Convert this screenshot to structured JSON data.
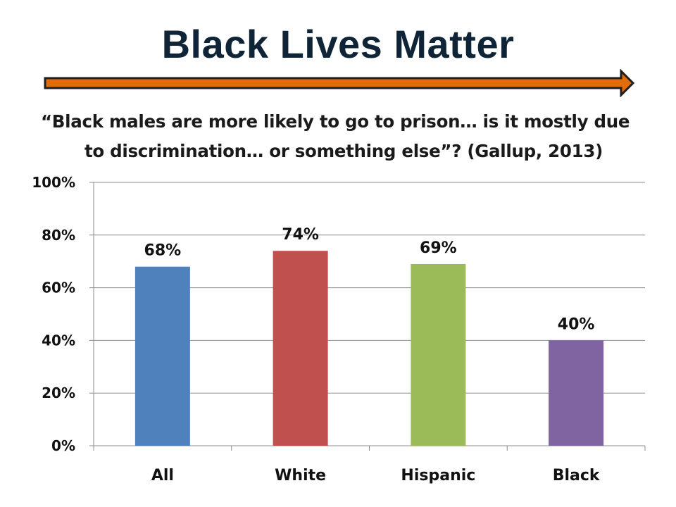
{
  "slide": {
    "title": "Black Lives Matter",
    "subtitle": "“Black males are more likely to go to prison… is it mostly due to discrimination… or something else”? (Gallup, 2013)"
  },
  "colors": {
    "arrow_fill": "#e36c0a",
    "arrow_stroke": "#1f1f1f",
    "title": "#0f2436"
  },
  "chart_data": {
    "type": "bar",
    "title": "",
    "xlabel": "",
    "ylabel": "",
    "categories": [
      "All",
      "White",
      "Hispanic",
      "Black"
    ],
    "values": [
      0.68,
      0.74,
      0.69,
      0.4
    ],
    "data_labels": [
      "68%",
      "74%",
      "69%",
      "40%"
    ],
    "bar_colors": [
      "#4f81bd",
      "#c0504d",
      "#9bbb59",
      "#8064a2"
    ],
    "ylim": [
      0,
      1
    ],
    "yticks": [
      0,
      0.2,
      0.4,
      0.6,
      0.8,
      1.0
    ],
    "ytick_labels": [
      "0%",
      "20%",
      "40%",
      "60%",
      "80%",
      "100%"
    ],
    "grid": true,
    "legend": "none"
  }
}
